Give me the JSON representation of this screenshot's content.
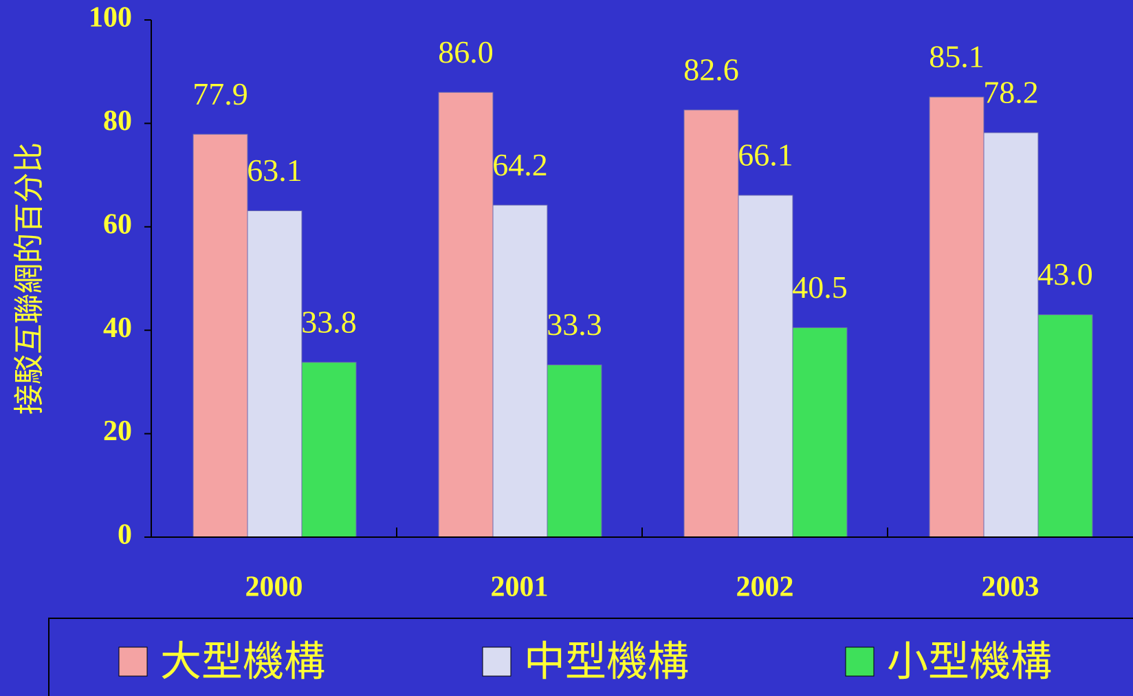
{
  "chart_data": {
    "type": "bar",
    "y_label": "接駁互聯網的百分比",
    "categories": [
      "2000",
      "2001",
      "2002",
      "2003"
    ],
    "series": [
      {
        "name": "大型機構",
        "color": "#f4a3a3",
        "values": [
          77.9,
          86.0,
          82.6,
          85.1
        ],
        "value_labels": [
          "77.9",
          "86.0",
          "82.6",
          "85.1"
        ]
      },
      {
        "name": "中型機構",
        "color": "#d9dcf2",
        "values": [
          63.1,
          64.2,
          66.1,
          78.2
        ],
        "value_labels": [
          "63.1",
          "64.2",
          "66.1",
          "78.2"
        ]
      },
      {
        "name": "小型機構",
        "color": "#3ee05a",
        "values": [
          33.8,
          33.3,
          40.5,
          43.0
        ],
        "value_labels": [
          "33.8",
          "33.3",
          "40.5",
          "43.0"
        ]
      }
    ],
    "ylim": [
      0,
      100
    ],
    "yticks": [
      0,
      20,
      40,
      60,
      80,
      100
    ],
    "legend": "bottom"
  }
}
